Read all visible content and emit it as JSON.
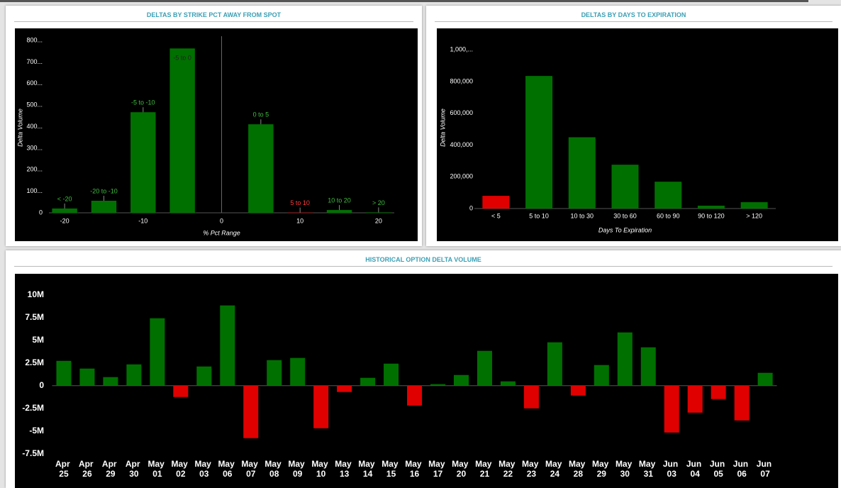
{
  "chart_data": [
    {
      "type": "bar",
      "title": "DELTAS BY STRIKE PCT AWAY FROM SPOT",
      "x": [
        -20,
        -15,
        -10,
        -5,
        5,
        10,
        15,
        20
      ],
      "values": [
        20,
        56,
        467,
        763,
        411,
        1,
        13,
        2
      ],
      "bar_labels": [
        "< -20",
        "-20 to -10",
        "-5 to -10",
        "-5 to 0",
        "0 to 5",
        "5 to 10",
        "10 to 20",
        "> 20"
      ],
      "colors": [
        "#007000",
        "#007000",
        "#007000",
        "#007000",
        "#007000",
        "#e00000",
        "#007000",
        "#007000"
      ],
      "xlim": [
        -22,
        22
      ],
      "xticks": [
        -20,
        -10,
        0,
        10,
        20
      ],
      "ylim": [
        0,
        820
      ],
      "yticks": [
        0,
        {
          "value": 100,
          "label": "100..."
        },
        {
          "value": 200,
          "label": "200..."
        },
        {
          "value": 300,
          "label": "300..."
        },
        {
          "value": 400,
          "label": "400..."
        },
        {
          "value": 500,
          "label": "500..."
        },
        {
          "value": 600,
          "label": "600..."
        },
        {
          "value": 700,
          "label": "700..."
        },
        {
          "value": 800,
          "label": "800..."
        }
      ],
      "xlabel": "% Pct Range",
      "ylabel": "Delta Volume"
    },
    {
      "type": "bar",
      "title": "DELTAS BY DAYS TO EXPIRATION",
      "categories": [
        "< 5",
        "5 to 10",
        "10 to 30",
        "30 to 60",
        "60 to 90",
        "90 to 120",
        "> 120"
      ],
      "values": [
        80000,
        835000,
        449000,
        276000,
        169000,
        18000,
        40000
      ],
      "colors": [
        "#e00000",
        "#007000",
        "#007000",
        "#007000",
        "#007000",
        "#007000",
        "#007000"
      ],
      "ylim": [
        0,
        1050000
      ],
      "yticks": [
        0,
        {
          "value": 200000,
          "label": "200,000"
        },
        {
          "value": 400000,
          "label": "400,000"
        },
        {
          "value": 600000,
          "label": "600,000"
        },
        {
          "value": 800000,
          "label": "800,000"
        },
        {
          "value": 1000000,
          "label": "1,000,..."
        }
      ],
      "xlabel": "Days To Expiration",
      "ylabel": "Delta Volume"
    },
    {
      "type": "bar",
      "title": "HISTORICAL OPTION DELTA VOLUME",
      "categories": [
        "Apr 25",
        "Apr 26",
        "Apr 29",
        "Apr 30",
        "May 01",
        "May 02",
        "May 03",
        "May 06",
        "May 07",
        "May 08",
        "May 09",
        "May 10",
        "May 13",
        "May 14",
        "May 15",
        "May 16",
        "May 17",
        "May 20",
        "May 21",
        "May 22",
        "May 23",
        "May 24",
        "May 28",
        "May 29",
        "May 30",
        "May 31",
        "Jun 03",
        "Jun 04",
        "Jun 05",
        "Jun 06",
        "Jun 07"
      ],
      "values": [
        2730000,
        1880000,
        940000,
        2340000,
        7420000,
        -1250000,
        2110000,
        8830000,
        -5780000,
        2810000,
        3050000,
        -4690000,
        -700000,
        860000,
        2420000,
        -2190000,
        160000,
        1170000,
        3830000,
        470000,
        -2500000,
        4770000,
        -1090000,
        2270000,
        5860000,
        4220000,
        -5160000,
        -2970000,
        -1480000,
        -3830000,
        1410000
      ],
      "positive_color": "#007000",
      "negative_color": "#e00000",
      "ylim": [
        -7600000,
        11300000
      ],
      "yticks": [
        {
          "value": 10000000,
          "label": "10M"
        },
        {
          "value": 7500000,
          "label": "7.5M"
        },
        {
          "value": 5000000,
          "label": "5M"
        },
        {
          "value": 2500000,
          "label": "2.5M"
        },
        0,
        {
          "value": -2500000,
          "label": "-2.5M"
        },
        {
          "value": -5000000,
          "label": "-5M"
        },
        {
          "value": -7500000,
          "label": "-7.5M"
        }
      ]
    }
  ]
}
